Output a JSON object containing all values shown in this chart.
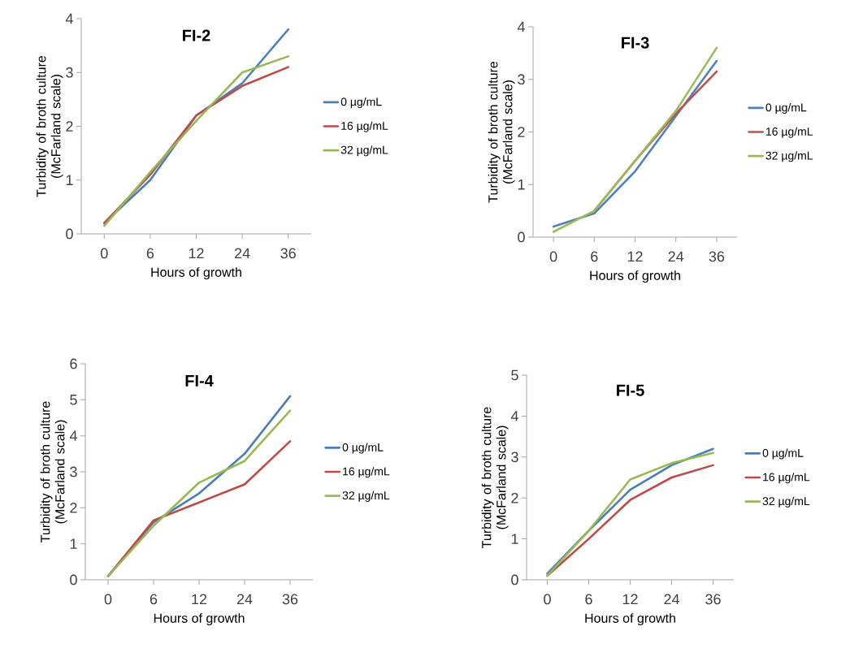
{
  "chart_data": [
    {
      "type": "line",
      "title": "FI-2",
      "xlabel": "Hours of growth",
      "ylabel": "Turbidity of broth culture (McFarland scale)",
      "categories": [
        "0",
        "6",
        "12",
        "24",
        "36"
      ],
      "ylim": [
        0,
        4
      ],
      "yticks": [
        0,
        1,
        2,
        3,
        4
      ],
      "legend": "right",
      "marker": "none",
      "series": [
        {
          "name": "0 µg/mL",
          "color": "#4a7ebb",
          "values": [
            0.2,
            1.0,
            2.2,
            2.8,
            3.8
          ]
        },
        {
          "name": "16 µg/mL",
          "color": "#be4b48",
          "values": [
            0.2,
            1.1,
            2.2,
            2.75,
            3.1
          ]
        },
        {
          "name": "32 µg/mL",
          "color": "#98b954",
          "values": [
            0.15,
            1.15,
            2.1,
            3.0,
            3.3
          ]
        }
      ]
    },
    {
      "type": "line",
      "title": "FI-3",
      "xlabel": "Hours of growth",
      "ylabel": "Turbidity of broth culture (McFarland scale)",
      "categories": [
        "0",
        "6",
        "12",
        "24",
        "36"
      ],
      "ylim": [
        0,
        4
      ],
      "yticks": [
        0,
        1,
        2,
        3,
        4
      ],
      "legend": "right",
      "marker": "none",
      "series": [
        {
          "name": "0 µg/mL",
          "color": "#4f81bd",
          "values": [
            0.2,
            0.45,
            1.25,
            2.3,
            3.35
          ]
        },
        {
          "name": "16 µg/mL",
          "color": "#c0504d",
          "values": [
            null,
            0.5,
            1.45,
            2.35,
            3.15
          ]
        },
        {
          "name": "32 µg/mL",
          "color": "#9bbb59",
          "values": [
            0.1,
            0.5,
            1.45,
            2.4,
            3.6
          ]
        }
      ]
    },
    {
      "type": "line",
      "title": "FI-4",
      "xlabel": "Hours of growth",
      "ylabel": "Turbidity of broth culture (McFarland scale)",
      "categories": [
        "0",
        "6",
        "12",
        "24",
        "36"
      ],
      "ylim": [
        0,
        6
      ],
      "yticks": [
        0,
        1,
        2,
        3,
        4,
        5,
        6
      ],
      "legend": "right",
      "marker": "none",
      "series": [
        {
          "name": "0 µg/mL",
          "color": "#4a7ebb",
          "values": [
            0.1,
            1.6,
            2.4,
            3.5,
            5.1
          ]
        },
        {
          "name": "16 µg/mL",
          "color": "#be4b48",
          "values": [
            0.1,
            1.65,
            2.15,
            2.65,
            3.85
          ]
        },
        {
          "name": "32 µg/mL",
          "color": "#98b954",
          "values": [
            0.1,
            1.5,
            2.7,
            3.3,
            4.7
          ]
        }
      ]
    },
    {
      "type": "line",
      "title": "FI-5",
      "xlabel": "Hours of growth",
      "ylabel": "Turbidity of broth culture (McFarland scale)",
      "categories": [
        "0",
        "6",
        "12",
        "24",
        "36"
      ],
      "ylim": [
        0,
        5
      ],
      "yticks": [
        0,
        1,
        2,
        3,
        4,
        5
      ],
      "legend": "right",
      "marker": "none",
      "series": [
        {
          "name": "0 µg/mL",
          "color": "#4a7ebb",
          "values": [
            0.15,
            1.2,
            2.2,
            2.8,
            3.2
          ]
        },
        {
          "name": "16 µg/mL",
          "color": "#be4b48",
          "values": [
            0.1,
            1.0,
            1.95,
            2.5,
            2.8
          ]
        },
        {
          "name": "32 µg/mL",
          "color": "#98b954",
          "values": [
            0.1,
            1.2,
            2.45,
            2.85,
            3.1
          ]
        }
      ]
    }
  ]
}
